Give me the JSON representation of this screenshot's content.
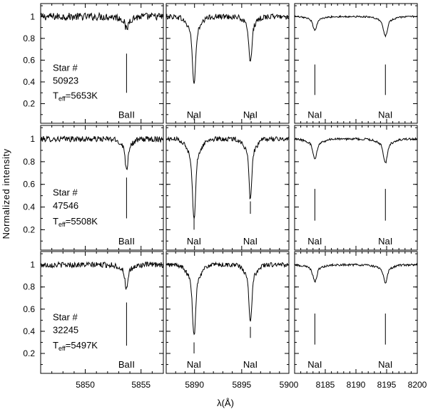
{
  "figure": {
    "xlabel": "λ(Å)",
    "ylabel": "Normalized intensity"
  },
  "chart_data": {
    "type": "line",
    "y_ticks": [
      0.2,
      0.4,
      0.6,
      0.8,
      1
    ],
    "y_tick_labels": [
      "0.2",
      "0.4",
      "0.6",
      "0.8",
      "1"
    ],
    "ylim": [
      0.02,
      1.12
    ],
    "columns": [
      {
        "xlim": [
          5846,
          5857
        ],
        "x_ticks": [
          5850,
          5855
        ],
        "x_tick_labels": [
          "5850",
          "5855"
        ],
        "lines": [
          {
            "center": 5853.7,
            "width": 0.13
          }
        ]
      },
      {
        "xlim": [
          5887,
          5900
        ],
        "x_ticks": [
          5890,
          5895,
          5900
        ],
        "x_tick_labels": [
          "5890",
          "5895",
          "5900"
        ],
        "lines": [
          {
            "center": 5889.95,
            "width": 0.16
          },
          {
            "center": 5895.92,
            "width": 0.14
          }
        ]
      },
      {
        "xlim": [
          8180,
          8200
        ],
        "x_ticks": [
          8185,
          8190,
          8195,
          8200
        ],
        "x_tick_labels": [
          "8185",
          "8190",
          "8195",
          "8200"
        ],
        "lines": [
          {
            "center": 8183.3,
            "width": 0.3
          },
          {
            "center": 8194.8,
            "width": 0.3
          }
        ]
      }
    ],
    "stars": [
      {
        "id_label": "Star #",
        "id": "50923",
        "teff": "=5653K",
        "depths": [
          [
            0.12
          ],
          [
            0.62,
            0.43
          ],
          [
            0.12,
            0.18
          ]
        ],
        "noise": [
          0.035,
          0.025,
          0.008
        ],
        "markers": [
          {
            "col": 0,
            "x": 5853.7,
            "y": [
              0.3,
              0.66
            ],
            "label": "BaII",
            "label_y": 0.07
          },
          {
            "col": 1,
            "x": 5889.95,
            "y": [
              0.05,
              0.09
            ],
            "label": "NaI",
            "label_y": 0.07
          },
          {
            "col": 1,
            "x": 5895.92,
            "y": [
              0.05,
              0.1
            ],
            "label": "NaI",
            "label_y": 0.07
          },
          {
            "col": 2,
            "x": 8183.3,
            "y": [
              0.28,
              0.56
            ],
            "label": "NaI",
            "label_y": 0.07
          },
          {
            "col": 2,
            "x": 8194.8,
            "y": [
              0.28,
              0.56
            ],
            "label": "NaI",
            "label_y": 0.07
          }
        ]
      },
      {
        "id_label": "Star #",
        "id": "47546",
        "teff": "=5508K",
        "depths": [
          [
            0.26
          ],
          [
            0.71,
            0.54
          ],
          [
            0.18,
            0.21
          ]
        ],
        "noise": [
          0.025,
          0.02,
          0.01
        ],
        "markers": [
          {
            "col": 0,
            "x": 5853.7,
            "y": [
              0.3,
              0.66
            ],
            "label": "BaII",
            "label_y": 0.07
          },
          {
            "col": 1,
            "x": 5889.95,
            "y": [
              0.2,
              0.32
            ],
            "label": "NaI",
            "label_y": 0.07
          },
          {
            "col": 1,
            "x": 5895.92,
            "y": [
              0.34,
              0.45
            ],
            "label": "NaI",
            "label_y": 0.07
          },
          {
            "col": 2,
            "x": 8183.3,
            "y": [
              0.28,
              0.56
            ],
            "label": "NaI",
            "label_y": 0.07
          },
          {
            "col": 2,
            "x": 8194.8,
            "y": [
              0.28,
              0.56
            ],
            "label": "NaI",
            "label_y": 0.07
          }
        ]
      },
      {
        "id_label": "Star #",
        "id": "32245",
        "teff": "=5497K",
        "depths": [
          [
            0.22
          ],
          [
            0.64,
            0.53
          ],
          [
            0.15,
            0.16
          ]
        ],
        "noise": [
          0.025,
          0.02,
          0.01
        ],
        "markers": [
          {
            "col": 0,
            "x": 5853.7,
            "y": [
              0.27,
              0.66
            ],
            "label": "BaII",
            "label_y": 0.07
          },
          {
            "col": 1,
            "x": 5889.95,
            "y": [
              0.2,
              0.3
            ],
            "label": "NaI",
            "label_y": 0.07
          },
          {
            "col": 1,
            "x": 5895.92,
            "y": [
              0.34,
              0.44
            ],
            "label": "NaI",
            "label_y": 0.07
          },
          {
            "col": 2,
            "x": 8183.3,
            "y": [
              0.28,
              0.56
            ],
            "label": "NaI",
            "label_y": 0.07
          },
          {
            "col": 2,
            "x": 8194.8,
            "y": [
              0.28,
              0.56
            ],
            "label": "NaI",
            "label_y": 0.07
          }
        ]
      }
    ]
  }
}
